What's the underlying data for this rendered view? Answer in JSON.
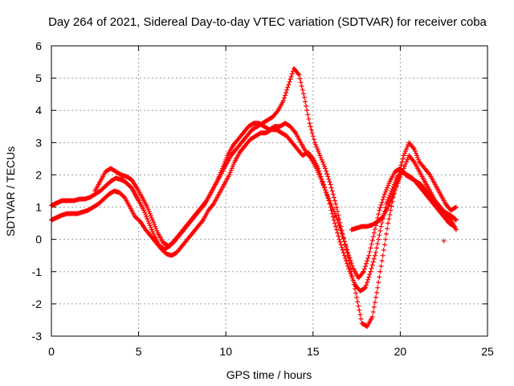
{
  "chart_data": {
    "type": "scatter",
    "title": "Day 264 of 2021, Sidereal Day-to-day VTEC variation (SDTVAR) for receiver coba",
    "xlabel": "GPS time / hours",
    "ylabel": "SDTVAR / TECUs",
    "xlim": [
      0,
      25
    ],
    "ylim": [
      -3,
      6
    ],
    "xticks": [
      0,
      5,
      10,
      15,
      20,
      25
    ],
    "yticks": [
      -3,
      -2,
      -1,
      0,
      1,
      2,
      3,
      4,
      5,
      6
    ],
    "grid": true,
    "marker": "plus",
    "color": "#ff0000",
    "series": [
      {
        "x": [
          0.0,
          0.2,
          0.4,
          0.6,
          0.8,
          1.0,
          1.3,
          1.6,
          1.9,
          2.2,
          2.5,
          2.8,
          3.1,
          3.4,
          3.7,
          4.0,
          4.2,
          4.4,
          4.6,
          4.8,
          5.0,
          5.3,
          5.6,
          5.9,
          6.2,
          6.5,
          6.8,
          7.1,
          7.4,
          7.7,
          8.0,
          8.3,
          8.6,
          8.9,
          9.2,
          9.5,
          9.8,
          10.1,
          10.4,
          10.7,
          11.0,
          11.3,
          11.6,
          11.9,
          12.2,
          12.5,
          12.8,
          13.1,
          13.4,
          13.7,
          14.0,
          14.3,
          14.6,
          14.9,
          15.2,
          15.5,
          15.8,
          16.1,
          16.4,
          16.7,
          17.0,
          17.3,
          17.6,
          17.9,
          18.2,
          18.5,
          18.8,
          19.1,
          19.4,
          19.7,
          20.0,
          20.3,
          20.6,
          20.9,
          21.2,
          21.5,
          21.8,
          22.1,
          22.4,
          22.7,
          23.0,
          23.2
        ],
        "y": [
          1.05,
          1.1,
          1.15,
          1.2,
          1.2,
          1.2,
          1.2,
          1.25,
          1.25,
          1.3,
          1.4,
          1.5,
          1.65,
          1.8,
          1.9,
          1.85,
          1.8,
          1.7,
          1.6,
          1.4,
          1.2,
          0.9,
          0.5,
          0.1,
          -0.2,
          -0.3,
          -0.2,
          0.0,
          0.2,
          0.4,
          0.6,
          0.8,
          1.0,
          1.2,
          1.5,
          1.8,
          2.2,
          2.6,
          2.9,
          3.1,
          3.3,
          3.5,
          3.6,
          3.6,
          3.5,
          3.4,
          3.5,
          3.5,
          3.6,
          3.5,
          3.3,
          3.0,
          2.7,
          2.5,
          2.2,
          1.8,
          1.4,
          1.0,
          0.6,
          0.1,
          -0.4,
          -0.9,
          -1.2,
          -1.0,
          -0.5,
          0.2,
          0.9,
          1.4,
          1.8,
          2.1,
          2.2,
          2.0,
          1.9,
          1.8,
          1.7,
          1.5,
          1.3,
          1.1,
          0.9,
          0.8,
          0.7,
          0.6
        ]
      },
      {
        "x": [
          0.0,
          0.2,
          0.4,
          0.6,
          0.9,
          1.2,
          1.5,
          1.8,
          2.1,
          2.4,
          2.7,
          3.0,
          3.3,
          3.6,
          3.9,
          4.2,
          4.5,
          4.8,
          5.1,
          5.4,
          5.7,
          6.0,
          6.3,
          6.6,
          6.9,
          7.2,
          7.5,
          7.8,
          8.1,
          8.4,
          8.7,
          9.0,
          9.3,
          9.6,
          9.9,
          10.2,
          10.5,
          10.8,
          11.1,
          11.4,
          11.7,
          12.0,
          12.3,
          12.6,
          12.9,
          13.2,
          13.5,
          13.8,
          14.1,
          14.4,
          14.7,
          15.0,
          15.3,
          15.6,
          15.9,
          16.2,
          16.5,
          16.8,
          17.1,
          17.4,
          17.7,
          18.0,
          18.3,
          18.6,
          18.9,
          19.2,
          19.5,
          19.8,
          20.1,
          20.4,
          20.7,
          21.0,
          21.3,
          21.6,
          21.9,
          22.2,
          22.5,
          22.8,
          23.1
        ],
        "y": [
          0.6,
          0.65,
          0.7,
          0.75,
          0.8,
          0.8,
          0.8,
          0.85,
          0.9,
          1.0,
          1.1,
          1.25,
          1.4,
          1.5,
          1.45,
          1.3,
          1.0,
          0.7,
          0.55,
          0.3,
          0.1,
          -0.1,
          -0.3,
          -0.45,
          -0.5,
          -0.4,
          -0.2,
          0.0,
          0.2,
          0.4,
          0.6,
          0.9,
          1.1,
          1.4,
          1.7,
          2.0,
          2.4,
          2.7,
          2.9,
          3.1,
          3.2,
          3.3,
          3.3,
          3.4,
          3.4,
          3.3,
          3.2,
          3.0,
          2.8,
          2.6,
          2.7,
          2.5,
          2.2,
          1.7,
          1.2,
          0.6,
          0.0,
          -0.5,
          -1.0,
          -1.4,
          -1.6,
          -1.5,
          -1.0,
          -0.4,
          0.4,
          1.1,
          1.5,
          1.9,
          2.1,
          2.0,
          1.9,
          1.7,
          1.5,
          1.3,
          1.1,
          0.9,
          0.7,
          0.5,
          0.4
        ]
      },
      {
        "x": [
          2.5,
          2.8,
          3.1,
          3.4,
          3.7,
          4.0,
          4.3,
          4.6,
          4.9,
          5.2,
          5.5,
          5.8,
          6.1,
          6.4,
          6.7,
          7.0,
          7.3,
          7.6,
          7.9,
          8.2,
          8.5,
          8.8,
          9.1,
          9.4,
          9.7,
          10.0,
          10.3,
          10.6,
          10.9,
          11.2,
          11.5,
          11.8,
          12.1,
          12.4,
          12.7,
          13.0,
          13.3,
          13.6,
          13.9,
          14.2,
          14.5,
          14.8,
          15.1,
          15.4,
          15.7,
          16.0,
          16.3,
          16.6,
          16.9,
          17.2,
          17.5,
          17.8,
          18.1,
          18.4,
          18.7,
          19.0,
          19.3,
          19.6,
          19.9,
          20.2,
          20.5,
          20.8,
          21.1,
          21.4,
          21.7,
          22.0,
          22.3,
          22.6,
          22.9,
          23.2
        ],
        "y": [
          1.5,
          1.8,
          2.1,
          2.2,
          2.1,
          2.0,
          1.95,
          1.85,
          1.6,
          1.3,
          1.0,
          0.6,
          0.2,
          -0.1,
          -0.2,
          -0.1,
          0.1,
          0.3,
          0.5,
          0.7,
          0.9,
          1.1,
          1.4,
          1.7,
          2.0,
          2.3,
          2.6,
          2.8,
          3.0,
          3.2,
          3.4,
          3.5,
          3.6,
          3.7,
          3.8,
          4.0,
          4.3,
          4.8,
          5.3,
          5.1,
          4.4,
          3.6,
          3.0,
          2.6,
          2.2,
          1.7,
          1.1,
          0.4,
          -0.3,
          -1.0,
          -1.8,
          -2.6,
          -2.7,
          -2.4,
          -1.5,
          -0.5,
          0.5,
          1.3,
          2.0,
          2.6,
          3.0,
          2.8,
          2.4,
          2.2,
          2.0,
          1.7,
          1.4,
          1.1,
          0.9,
          1.0
        ]
      },
      {
        "x": [
          17.2,
          17.5,
          17.8,
          18.1,
          18.4,
          18.7,
          19.0,
          19.3,
          19.6,
          19.9,
          20.2,
          20.5,
          20.8,
          21.1,
          21.4,
          21.7,
          22.0,
          22.3,
          22.6,
          22.9,
          23.2
        ],
        "y": [
          0.3,
          0.35,
          0.4,
          0.4,
          0.45,
          0.55,
          0.7,
          1.0,
          1.4,
          1.8,
          2.2,
          2.6,
          2.4,
          2.1,
          1.8,
          1.5,
          1.2,
          1.0,
          0.8,
          0.6,
          0.3
        ]
      },
      {
        "x": [
          22.5
        ],
        "y": [
          -0.05
        ]
      }
    ]
  }
}
